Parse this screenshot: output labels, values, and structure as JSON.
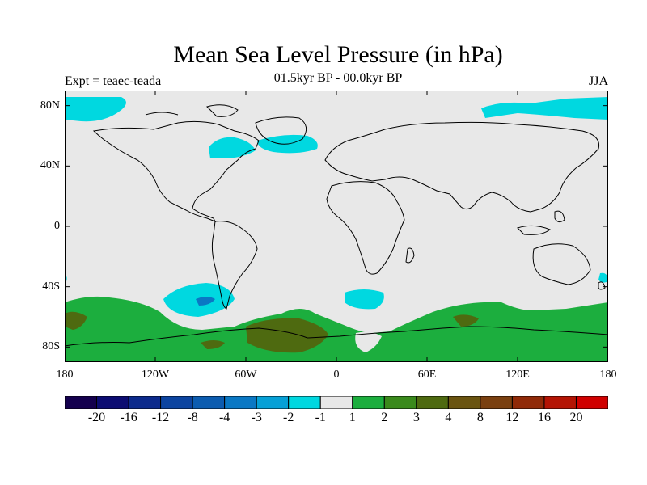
{
  "header": {
    "title": "Mean Sea Level Pressure (in hPa)",
    "subtitle": "01.5kyr BP - 00.0kyr BP",
    "experiment": "Expt = teaec-teada",
    "season": "JJA"
  },
  "map": {
    "land_color": "#e8e8e8",
    "coastline_color": "#000000",
    "lat_axis": {
      "range": [
        -90,
        90
      ],
      "ticks": [
        {
          "value": 80,
          "label": "80N"
        },
        {
          "value": 40,
          "label": "40N"
        },
        {
          "value": 0,
          "label": "0"
        },
        {
          "value": -40,
          "label": "40S"
        },
        {
          "value": -80,
          "label": "80S"
        }
      ]
    },
    "lon_axis": {
      "range": [
        -180,
        180
      ],
      "ticks": [
        {
          "value": -180,
          "label": "180"
        },
        {
          "value": -120,
          "label": "120W"
        },
        {
          "value": -60,
          "label": "60W"
        },
        {
          "value": 0,
          "label": "0"
        },
        {
          "value": 60,
          "label": "60E"
        },
        {
          "value": 120,
          "label": "120E"
        },
        {
          "value": 180,
          "label": "180"
        }
      ]
    }
  },
  "colorbar": {
    "colors": [
      "#14004e",
      "#0c0c72",
      "#0c2a8c",
      "#0c44a0",
      "#0c5cb0",
      "#0a78c4",
      "#06a0d6",
      "#00d8e0",
      "#e8e8e8",
      "#1cae3e",
      "#3a8a1c",
      "#4e6a10",
      "#6a5410",
      "#7a4010",
      "#902a08",
      "#b41404",
      "#d00000"
    ],
    "labels": [
      "-20",
      "-16",
      "-12",
      "-8",
      "-4",
      "-3",
      "-2",
      "-1",
      "1",
      "2",
      "3",
      "4",
      "8",
      "12",
      "16",
      "20"
    ]
  }
}
